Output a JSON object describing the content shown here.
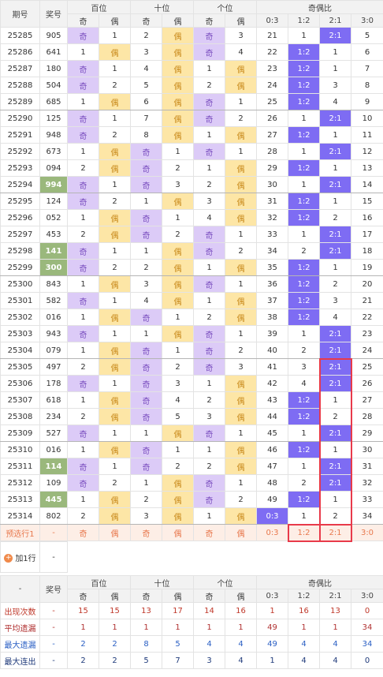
{
  "table": {
    "header": {
      "top": [
        "期号",
        "奖号",
        "百位",
        "十位",
        "个位",
        "奇偶比"
      ],
      "sub": [
        "奇",
        "偶",
        "奇",
        "偶",
        "奇",
        "偶",
        "0:3",
        "1:2",
        "2:1",
        "3:0"
      ]
    },
    "rows": [
      [
        "25285",
        "905",
        "奇",
        "1",
        "2",
        "偶",
        "奇",
        "3",
        "21",
        "1",
        "2:1",
        "5"
      ],
      [
        "25286",
        "641",
        "1",
        "偶",
        "3",
        "偶",
        "奇",
        "4",
        "22",
        "1:2",
        "1",
        "6"
      ],
      [
        "25287",
        "180",
        "奇",
        "1",
        "4",
        "偶",
        "1",
        "偶",
        "23",
        "1:2",
        "1",
        "7"
      ],
      [
        "25288",
        "504",
        "奇",
        "2",
        "5",
        "偶",
        "2",
        "偶",
        "24",
        "1:2",
        "3",
        "8"
      ],
      [
        "25289",
        "685",
        "1",
        "偶",
        "6",
        "偶",
        "奇",
        "1",
        "25",
        "1:2",
        "4",
        "9"
      ],
      [
        "25290",
        "125",
        "奇",
        "1",
        "7",
        "偶",
        "奇",
        "2",
        "26",
        "1",
        "2:1",
        "10"
      ],
      [
        "25291",
        "948",
        "奇",
        "2",
        "8",
        "偶",
        "1",
        "偶",
        "27",
        "1:2",
        "1",
        "11"
      ],
      [
        "25292",
        "673",
        "1",
        "偶",
        "奇",
        "1",
        "奇",
        "1",
        "28",
        "1",
        "2:1",
        "12"
      ],
      [
        "25293",
        "094",
        "2",
        "偶",
        "奇",
        "2",
        "1",
        "偶",
        "29",
        "1:2",
        "1",
        "13"
      ],
      [
        "25294",
        "994",
        "奇",
        "1",
        "奇",
        "3",
        "2",
        "偶",
        "30",
        "1",
        "2:1",
        "14"
      ],
      [
        "25295",
        "124",
        "奇",
        "2",
        "1",
        "偶",
        "3",
        "偶",
        "31",
        "1:2",
        "1",
        "15"
      ],
      [
        "25296",
        "052",
        "1",
        "偶",
        "奇",
        "1",
        "4",
        "偶",
        "32",
        "1:2",
        "2",
        "16"
      ],
      [
        "25297",
        "453",
        "2",
        "偶",
        "奇",
        "2",
        "奇",
        "1",
        "33",
        "1",
        "2:1",
        "17"
      ],
      [
        "25298",
        "141",
        "奇",
        "1",
        "1",
        "偶",
        "奇",
        "2",
        "34",
        "2",
        "2:1",
        "18"
      ],
      [
        "25299",
        "300",
        "奇",
        "2",
        "2",
        "偶",
        "1",
        "偶",
        "35",
        "1:2",
        "1",
        "19"
      ],
      [
        "25300",
        "843",
        "1",
        "偶",
        "3",
        "偶",
        "奇",
        "1",
        "36",
        "1:2",
        "2",
        "20"
      ],
      [
        "25301",
        "582",
        "奇",
        "1",
        "4",
        "偶",
        "1",
        "偶",
        "37",
        "1:2",
        "3",
        "21"
      ],
      [
        "25302",
        "016",
        "1",
        "偶",
        "奇",
        "1",
        "2",
        "偶",
        "38",
        "1:2",
        "4",
        "22"
      ],
      [
        "25303",
        "943",
        "奇",
        "1",
        "1",
        "偶",
        "奇",
        "1",
        "39",
        "1",
        "2:1",
        "23"
      ],
      [
        "25304",
        "079",
        "1",
        "偶",
        "奇",
        "1",
        "奇",
        "2",
        "40",
        "2",
        "2:1",
        "24"
      ],
      [
        "25305",
        "497",
        "2",
        "偶",
        "奇",
        "2",
        "奇",
        "3",
        "41",
        "3",
        "2:1",
        "25"
      ],
      [
        "25306",
        "178",
        "奇",
        "1",
        "奇",
        "3",
        "1",
        "偶",
        "42",
        "4",
        "2:1",
        "26"
      ],
      [
        "25307",
        "618",
        "1",
        "偶",
        "奇",
        "4",
        "2",
        "偶",
        "43",
        "1:2",
        "1",
        "27"
      ],
      [
        "25308",
        "234",
        "2",
        "偶",
        "奇",
        "5",
        "3",
        "偶",
        "44",
        "1:2",
        "2",
        "28"
      ],
      [
        "25309",
        "527",
        "奇",
        "1",
        "1",
        "偶",
        "奇",
        "1",
        "45",
        "1",
        "2:1",
        "29"
      ],
      [
        "25310",
        "016",
        "1",
        "偶",
        "奇",
        "1",
        "1",
        "偶",
        "46",
        "1:2",
        "1",
        "30"
      ],
      [
        "25311",
        "114",
        "奇",
        "1",
        "奇",
        "2",
        "2",
        "偶",
        "47",
        "1",
        "2:1",
        "31"
      ],
      [
        "25312",
        "109",
        "奇",
        "2",
        "1",
        "偶",
        "奇",
        "1",
        "48",
        "2",
        "2:1",
        "32"
      ],
      [
        "25313",
        "445",
        "1",
        "偶",
        "2",
        "偶",
        "奇",
        "2",
        "49",
        "1:2",
        "1",
        "33"
      ],
      [
        "25314",
        "802",
        "2",
        "偶",
        "3",
        "偶",
        "1",
        "偶",
        "0:3",
        "1",
        "2",
        "34"
      ]
    ],
    "highlight_rows": [
      9,
      13,
      14,
      26,
      28
    ],
    "preselect": [
      "预选行1",
      "-",
      "奇",
      "偶",
      "奇",
      "偶",
      "奇",
      "偶",
      "0:3",
      "1:2",
      "2:1",
      "3:0"
    ],
    "add_row": {
      "label": "加1行",
      "value": "-"
    },
    "footer": {
      "header": {
        "first": "-",
        "second": "奖号",
        "top": [
          "百位",
          "十位",
          "个位",
          "奇偶比"
        ],
        "sub": [
          "奇",
          "偶",
          "奇",
          "偶",
          "奇",
          "偶",
          "0:3",
          "1:2",
          "2:1",
          "3:0"
        ]
      },
      "rows": [
        [
          "出现次数",
          "-",
          "15",
          "15",
          "13",
          "17",
          "14",
          "16",
          "1",
          "16",
          "13",
          "0"
        ],
        [
          "平均遗漏",
          "-",
          "1",
          "1",
          "1",
          "1",
          "1",
          "1",
          "49",
          "1",
          "1",
          "34"
        ],
        [
          "最大遗漏",
          "-",
          "2",
          "2",
          "8",
          "5",
          "4",
          "4",
          "49",
          "4",
          "4",
          "34"
        ],
        [
          "最大连出",
          "-",
          "2",
          "2",
          "5",
          "7",
          "3",
          "4",
          "1",
          "4",
          "4",
          "0"
        ]
      ]
    }
  }
}
